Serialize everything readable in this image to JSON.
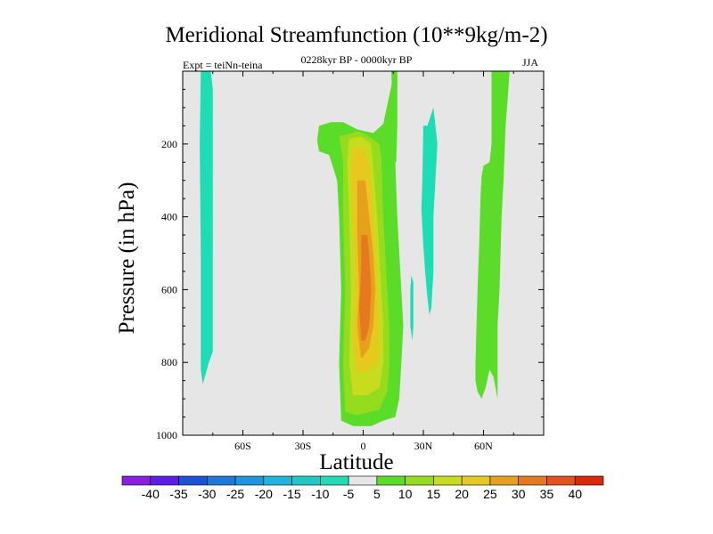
{
  "chart_data": {
    "type": "contour",
    "title": "Meridional Streamfunction (10**9kg/m-2)",
    "subtitle": "0228kyr BP - 0000kyr BP",
    "experiment": "Expt = teiNn-teina",
    "season": "JJA",
    "xlabel": "Latitude",
    "ylabel": "Pressure (in hPa)",
    "xlim": [
      -90,
      90
    ],
    "ylim": [
      1000,
      0
    ],
    "xticks": [
      {
        "value": -60,
        "label": "60S"
      },
      {
        "value": -30,
        "label": "30S"
      },
      {
        "value": 0,
        "label": "0"
      },
      {
        "value": 30,
        "label": "30N"
      },
      {
        "value": 60,
        "label": "60N"
      }
    ],
    "yticks": [
      {
        "value": 200,
        "label": "200"
      },
      {
        "value": 400,
        "label": "400"
      },
      {
        "value": 600,
        "label": "600"
      },
      {
        "value": 800,
        "label": "800"
      },
      {
        "value": 1000,
        "label": "1000"
      }
    ],
    "colorbar": {
      "labels": [
        "-40",
        "-35",
        "-30",
        "-25",
        "-20",
        "-15",
        "-10",
        "-5",
        "5",
        "10",
        "15",
        "20",
        "25",
        "30",
        "35",
        "40"
      ],
      "colors": [
        "#8a1ee6",
        "#5a1ee6",
        "#1e50dc",
        "#1e78dc",
        "#1e96dc",
        "#1eb4dc",
        "#1ec8c8",
        "#1edcb4",
        "#e6e6e6",
        "#5adc28",
        "#96dc1e",
        "#c8dc1e",
        "#e6c81e",
        "#e6a01e",
        "#e6781e",
        "#e6501e",
        "#dc280a"
      ]
    },
    "regions": [
      {
        "name": "sh-high-lat-cell",
        "color": "#1edcb4",
        "points": [
          [
            -81,
            0
          ],
          [
            -76,
            0
          ],
          [
            -75,
            50
          ],
          [
            -75,
            770
          ],
          [
            -77,
            800
          ],
          [
            -79,
            840
          ],
          [
            -80,
            860
          ],
          [
            -81,
            820
          ],
          [
            -81,
            500
          ],
          [
            -81.5,
            200
          ]
        ]
      },
      {
        "name": "nh-subtropical-cell",
        "color": "#1edcb4",
        "points": [
          [
            30,
            150
          ],
          [
            32,
            150
          ],
          [
            35,
            100
          ],
          [
            37,
            200
          ],
          [
            36,
            300
          ],
          [
            35,
            400
          ],
          [
            35,
            550
          ],
          [
            34,
            650
          ],
          [
            33,
            670
          ],
          [
            32,
            620
          ],
          [
            31,
            560
          ],
          [
            30,
            480
          ],
          [
            29,
            380
          ],
          [
            29.5,
            300
          ]
        ]
      },
      {
        "name": "nh-subtropical-sliver",
        "color": "#1edcb4",
        "points": [
          [
            24,
            560
          ],
          [
            25,
            580
          ],
          [
            25,
            700
          ],
          [
            24.5,
            740
          ],
          [
            23.5,
            700
          ],
          [
            23.5,
            600
          ]
        ]
      },
      {
        "name": "tropical-positive-5",
        "color": "#5adc28",
        "points": [
          [
            -22,
            150
          ],
          [
            -16,
            140
          ],
          [
            -10,
            140
          ],
          [
            -3,
            160
          ],
          [
            5,
            170
          ],
          [
            10,
            145
          ],
          [
            15,
            15
          ],
          [
            17,
            15
          ],
          [
            16,
            250
          ],
          [
            17,
            400
          ],
          [
            18,
            500
          ],
          [
            19,
            600
          ],
          [
            20,
            700
          ],
          [
            19,
            800
          ],
          [
            18,
            900
          ],
          [
            16,
            950
          ],
          [
            10,
            960
          ],
          [
            4,
            975
          ],
          [
            -5,
            975
          ],
          [
            -11,
            960
          ],
          [
            -12,
            800
          ],
          [
            -11,
            600
          ],
          [
            -12,
            400
          ],
          [
            -13,
            300
          ],
          [
            -17,
            230
          ],
          [
            -22,
            220
          ],
          [
            -23,
            190
          ]
        ]
      },
      {
        "name": "nh-high-lat-positive",
        "color": "#5adc28",
        "points": [
          [
            64,
            0
          ],
          [
            73,
            0
          ],
          [
            72,
            80
          ],
          [
            71,
            150
          ],
          [
            70,
            300
          ],
          [
            69,
            400
          ],
          [
            68,
            600
          ],
          [
            67,
            700
          ],
          [
            67,
            800
          ],
          [
            67,
            900
          ],
          [
            66,
            870
          ],
          [
            65,
            840
          ],
          [
            63,
            820
          ],
          [
            61,
            870
          ],
          [
            59,
            900
          ],
          [
            57,
            880
          ],
          [
            56,
            850
          ],
          [
            56,
            800
          ],
          [
            57,
            600
          ],
          [
            58,
            450
          ],
          [
            58.5,
            350
          ],
          [
            59,
            290
          ],
          [
            60,
            260
          ],
          [
            63,
            250
          ],
          [
            64,
            200
          ],
          [
            64,
            120
          ]
        ]
      },
      {
        "name": "nh-positive-strip",
        "color": "#5adc28",
        "points": [
          [
            14,
            0
          ],
          [
            17,
            0
          ],
          [
            17,
            150
          ],
          [
            16.5,
            250
          ],
          [
            15.5,
            250
          ],
          [
            15,
            150
          ]
        ]
      },
      {
        "name": "tropical-positive-10",
        "color": "#96dc1e",
        "points": [
          [
            -12,
            180
          ],
          [
            -3,
            165
          ],
          [
            2,
            175
          ],
          [
            8,
            200
          ],
          [
            9,
            240
          ],
          [
            10,
            400
          ],
          [
            11,
            500
          ],
          [
            12,
            600
          ],
          [
            13,
            700
          ],
          [
            13,
            800
          ],
          [
            12,
            880
          ],
          [
            8,
            930
          ],
          [
            -3,
            945
          ],
          [
            -9,
            935
          ],
          [
            -10,
            800
          ],
          [
            -9,
            600
          ],
          [
            -10,
            400
          ],
          [
            -10,
            250
          ]
        ]
      },
      {
        "name": "tropical-positive-15",
        "color": "#c8dc1e",
        "points": [
          [
            -7,
            185
          ],
          [
            -1,
            180
          ],
          [
            4,
            200
          ],
          [
            7,
            400
          ],
          [
            8,
            500
          ],
          [
            9,
            600
          ],
          [
            10,
            700
          ],
          [
            10,
            800
          ],
          [
            8,
            870
          ],
          [
            2,
            890
          ],
          [
            -5,
            890
          ],
          [
            -7,
            800
          ],
          [
            -6,
            600
          ],
          [
            -7,
            400
          ],
          [
            -8,
            250
          ]
        ]
      },
      {
        "name": "tropical-positive-20",
        "color": "#e6c81e",
        "points": [
          [
            -5,
            210
          ],
          [
            0,
            210
          ],
          [
            3,
            250
          ],
          [
            5,
            400
          ],
          [
            6,
            500
          ],
          [
            7,
            600
          ],
          [
            8,
            700
          ],
          [
            7,
            800
          ],
          [
            3,
            820
          ],
          [
            -3,
            830
          ],
          [
            -5,
            750
          ],
          [
            -4,
            600
          ],
          [
            -5,
            400
          ],
          [
            -6,
            260
          ]
        ]
      },
      {
        "name": "tropical-positive-25",
        "color": "#e6a01e",
        "points": [
          [
            -3,
            300
          ],
          [
            1,
            300
          ],
          [
            3,
            400
          ],
          [
            5,
            500
          ],
          [
            6,
            600
          ],
          [
            5,
            700
          ],
          [
            3,
            760
          ],
          [
            -1,
            790
          ],
          [
            -3,
            700
          ],
          [
            -2,
            600
          ],
          [
            -3,
            450
          ]
        ]
      },
      {
        "name": "tropical-positive-30",
        "color": "#e6781e",
        "points": [
          [
            -1,
            450
          ],
          [
            2,
            450
          ],
          [
            3,
            500
          ],
          [
            4,
            600
          ],
          [
            3,
            700
          ],
          [
            1,
            740
          ],
          [
            -1,
            740
          ],
          [
            -2,
            650
          ],
          [
            -1,
            550
          ]
        ]
      }
    ]
  }
}
